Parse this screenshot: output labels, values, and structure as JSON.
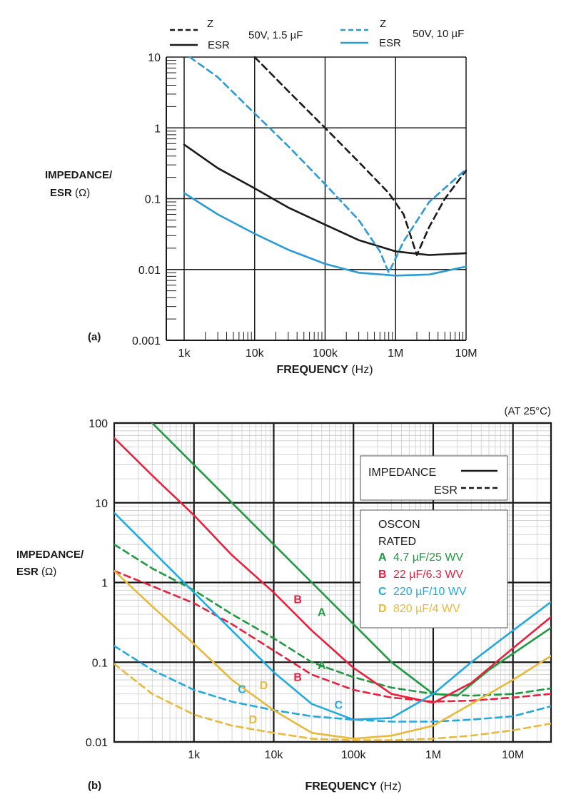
{
  "chart_data": [
    {
      "type": "line",
      "panel_label": "(a)",
      "x_scale": "log",
      "y_scale": "log",
      "xlabel_bold": "FREQUENCY",
      "xlabel_unit": " (Hz)",
      "ylabel_line1": "IMPEDANCE/",
      "ylabel_line2_bold": "ESR",
      "ylabel_line2_unit": " (Ω)",
      "xlim": [
        1000,
        10000000
      ],
      "ylim": [
        0.001,
        10
      ],
      "x_ticks": [
        {
          "value": 1000,
          "label": "1k"
        },
        {
          "value": 10000,
          "label": "10k"
        },
        {
          "value": 100000,
          "label": "100k"
        },
        {
          "value": 1000000,
          "label": "1M"
        },
        {
          "value": 10000000,
          "label": "10M"
        }
      ],
      "y_ticks": [
        {
          "value": 0.001,
          "label": "0.001"
        },
        {
          "value": 0.01,
          "label": "0.01"
        },
        {
          "value": 0.1,
          "label": "0.1"
        },
        {
          "value": 1,
          "label": "1"
        },
        {
          "value": 10,
          "label": "10"
        }
      ],
      "legend": {
        "placement": "top",
        "groups": [
          {
            "z_label": "Z",
            "esr_label": "ESR",
            "caption": "50V, 1.5 µF",
            "color": "#1a1a1a"
          },
          {
            "z_label": "Z",
            "esr_label": "ESR",
            "caption": "50V, 10 µF",
            "color": "#2a9bd6"
          }
        ]
      },
      "series": [
        {
          "name": "Z 50V, 1.5 µF",
          "color": "#1a1a1a",
          "dash": true,
          "x": [
            10000,
            30000,
            100000,
            300000,
            800000,
            1300000,
            2000000,
            3000000,
            5000000,
            10000000
          ],
          "y": [
            10,
            3.3,
            1.0,
            0.33,
            0.12,
            0.06,
            0.016,
            0.04,
            0.1,
            0.25
          ]
        },
        {
          "name": "ESR 50V, 1.5 µF",
          "color": "#1a1a1a",
          "dash": false,
          "x": [
            1000,
            3000,
            10000,
            30000,
            100000,
            300000,
            1000000,
            3000000,
            10000000
          ],
          "y": [
            0.58,
            0.27,
            0.14,
            0.075,
            0.043,
            0.026,
            0.018,
            0.016,
            0.017
          ]
        },
        {
          "name": "Z 50V, 10 µF",
          "color": "#2a9bd6",
          "dash": true,
          "x": [
            1200,
            3000,
            10000,
            30000,
            100000,
            300000,
            600000,
            800000,
            1300000,
            3000000,
            10000000
          ],
          "y": [
            10,
            5.2,
            1.6,
            0.55,
            0.16,
            0.05,
            0.018,
            0.009,
            0.025,
            0.09,
            0.26
          ]
        },
        {
          "name": "ESR 50V, 10 µF",
          "color": "#2a9bd6",
          "dash": false,
          "x": [
            1000,
            3000,
            10000,
            30000,
            100000,
            300000,
            1000000,
            3000000,
            10000000
          ],
          "y": [
            0.12,
            0.06,
            0.032,
            0.019,
            0.012,
            0.009,
            0.0082,
            0.0085,
            0.011
          ]
        }
      ]
    },
    {
      "type": "line",
      "panel_label": "(b)",
      "annotation": "(AT 25°C)",
      "x_scale": "log",
      "y_scale": "log",
      "xlabel_bold": "FREQUENCY",
      "xlabel_unit": " (Hz)",
      "ylabel_line1": "IMPEDANCE/",
      "ylabel_line2_bold": "ESR",
      "ylabel_line2_unit": " (Ω)",
      "xlim": [
        100,
        30000000
      ],
      "ylim": [
        0.01,
        100
      ],
      "x_ticks": [
        {
          "value": 1000,
          "label": "1k"
        },
        {
          "value": 10000,
          "label": "10k"
        },
        {
          "value": 100000,
          "label": "100k"
        },
        {
          "value": 1000000,
          "label": "1M"
        },
        {
          "value": 10000000,
          "label": "10M"
        }
      ],
      "y_ticks": [
        {
          "value": 0.01,
          "label": "0.01"
        },
        {
          "value": 0.1,
          "label": "0.1"
        },
        {
          "value": 1,
          "label": "1"
        },
        {
          "value": 10,
          "label": "10"
        },
        {
          "value": 100,
          "label": "100"
        }
      ],
      "legend_style": {
        "placement": "top-right",
        "impedance_label": "IMPEDANCE",
        "esr_label": "ESR"
      },
      "legend_series": {
        "placement": "right",
        "title_line1": "OSCON",
        "title_line2": "RATED",
        "entries": [
          {
            "letter": "A",
            "text": "4.7 µF/25 WV",
            "color": "#1e9a40"
          },
          {
            "letter": "B",
            "text": "22 µF/6.3 WV",
            "color": "#e8213f"
          },
          {
            "letter": "C",
            "text": "220 µF/10 WV",
            "color": "#22a9e0"
          },
          {
            "letter": "D",
            "text": "820 µF/4 WV",
            "color": "#e8b93a"
          }
        ]
      },
      "series": [
        {
          "name": "A impedance",
          "letter": "A",
          "kind": "impedance",
          "color": "#1e9a40",
          "dash": false,
          "x": [
            300,
            1000,
            3000,
            10000,
            30000,
            100000,
            300000,
            1000000,
            2000000,
            5000000,
            30000000
          ],
          "y": [
            100,
            30,
            10,
            3.0,
            1.0,
            0.3,
            0.1,
            0.04,
            0.038,
            0.08,
            0.27
          ]
        },
        {
          "name": "A ESR",
          "letter": "A",
          "kind": "esr",
          "color": "#1e9a40",
          "dash": true,
          "x": [
            100,
            300,
            1000,
            3000,
            10000,
            30000,
            100000,
            300000,
            1000000,
            3000000,
            10000000,
            30000000
          ],
          "y": [
            3.0,
            1.5,
            0.8,
            0.4,
            0.2,
            0.1,
            0.065,
            0.048,
            0.04,
            0.038,
            0.04,
            0.047
          ]
        },
        {
          "name": "B impedance",
          "letter": "B",
          "kind": "impedance",
          "color": "#e8213f",
          "dash": false,
          "x": [
            100,
            300,
            1000,
            3000,
            10000,
            30000,
            100000,
            300000,
            1000000,
            3000000,
            10000000,
            30000000
          ],
          "y": [
            65,
            22,
            7.0,
            2.2,
            0.75,
            0.25,
            0.085,
            0.04,
            0.031,
            0.055,
            0.15,
            0.37
          ]
        },
        {
          "name": "B ESR",
          "letter": "B",
          "kind": "esr",
          "color": "#e8213f",
          "dash": true,
          "x": [
            100,
            300,
            1000,
            3000,
            10000,
            30000,
            100000,
            300000,
            1000000,
            3000000,
            10000000,
            30000000
          ],
          "y": [
            1.4,
            0.9,
            0.55,
            0.3,
            0.14,
            0.07,
            0.045,
            0.036,
            0.032,
            0.033,
            0.036,
            0.04
          ]
        },
        {
          "name": "C impedance",
          "letter": "C",
          "kind": "impedance",
          "color": "#22a9e0",
          "dash": false,
          "x": [
            100,
            300,
            1000,
            3000,
            10000,
            30000,
            100000,
            300000,
            1000000,
            3000000,
            10000000,
            30000000
          ],
          "y": [
            7.5,
            2.5,
            0.75,
            0.25,
            0.075,
            0.03,
            0.019,
            0.02,
            0.04,
            0.1,
            0.25,
            0.57
          ]
        },
        {
          "name": "C ESR",
          "letter": "C",
          "kind": "esr",
          "color": "#22a9e0",
          "dash": true,
          "x": [
            100,
            300,
            1000,
            3000,
            10000,
            30000,
            100000,
            300000,
            1000000,
            3000000,
            10000000,
            30000000
          ],
          "y": [
            0.16,
            0.08,
            0.045,
            0.032,
            0.025,
            0.021,
            0.019,
            0.018,
            0.018,
            0.019,
            0.021,
            0.028
          ]
        },
        {
          "name": "D impedance",
          "letter": "D",
          "kind": "impedance",
          "color": "#e8b93a",
          "dash": false,
          "x": [
            100,
            300,
            1000,
            3000,
            10000,
            30000,
            100000,
            300000,
            1000000,
            3000000,
            10000000,
            30000000
          ],
          "y": [
            1.4,
            0.5,
            0.17,
            0.06,
            0.025,
            0.013,
            0.011,
            0.012,
            0.016,
            0.03,
            0.06,
            0.12
          ]
        },
        {
          "name": "D ESR",
          "letter": "D",
          "kind": "esr",
          "color": "#e8b93a",
          "dash": true,
          "x": [
            100,
            300,
            1000,
            3000,
            10000,
            30000,
            100000,
            300000,
            1000000,
            3000000,
            10000000,
            30000000
          ],
          "y": [
            0.095,
            0.04,
            0.022,
            0.016,
            0.013,
            0.011,
            0.0105,
            0.0105,
            0.011,
            0.012,
            0.014,
            0.017
          ]
        }
      ],
      "curve_labels": [
        {
          "letter": "A",
          "series": "A impedance",
          "x": 40000,
          "y": 0.38,
          "color": "#1e9a40"
        },
        {
          "letter": "B",
          "series": "B impedance",
          "x": 20000,
          "y": 0.55,
          "color": "#e8213f"
        },
        {
          "letter": "A",
          "series": "A ESR",
          "x": 40000,
          "y": 0.082,
          "color": "#1e9a40"
        },
        {
          "letter": "B",
          "series": "B ESR",
          "x": 20000,
          "y": 0.058,
          "color": "#e8213f"
        },
        {
          "letter": "C",
          "series": "C ESR",
          "x": 4000,
          "y": 0.041,
          "color": "#22a9e0"
        },
        {
          "letter": "D",
          "series": "D impedance",
          "x": 7500,
          "y": 0.046,
          "color": "#e8b93a"
        },
        {
          "letter": "C",
          "series": "C impedance",
          "x": 65000,
          "y": 0.026,
          "color": "#22a9e0"
        },
        {
          "letter": "D",
          "series": "D ESR",
          "x": 5500,
          "y": 0.017,
          "color": "#e8b93a"
        }
      ]
    }
  ]
}
